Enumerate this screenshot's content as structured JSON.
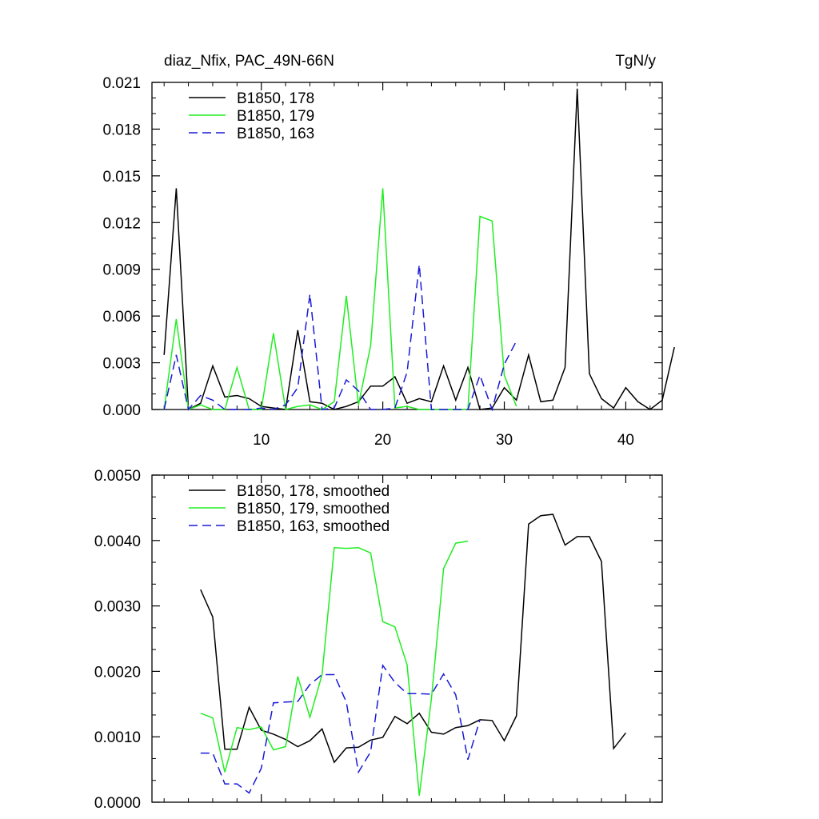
{
  "chart_data": [
    {
      "type": "line",
      "title_left": "diaz_Nfix, PAC_49N-66N",
      "title_right": "TgN/y",
      "xlim": [
        1,
        43
      ],
      "ylim": [
        0,
        0.021
      ],
      "xticks": [
        {
          "value": 10,
          "label": "10"
        },
        {
          "value": 20,
          "label": "20"
        },
        {
          "value": 30,
          "label": "30"
        },
        {
          "value": 40,
          "label": "40"
        }
      ],
      "yticks": [
        {
          "value": 0,
          "label": "0.000"
        },
        {
          "value": 0.003,
          "label": "0.003"
        },
        {
          "value": 0.006,
          "label": "0.006"
        },
        {
          "value": 0.009,
          "label": "0.009"
        },
        {
          "value": 0.012,
          "label": "0.012"
        },
        {
          "value": 0.015,
          "label": "0.015"
        },
        {
          "value": 0.018,
          "label": "0.018"
        },
        {
          "value": 0.021,
          "label": "0.021"
        }
      ],
      "legend_position": "top-left",
      "series": [
        {
          "name": "B1850, 178",
          "color": "#000000",
          "dash": "solid",
          "x_start": 2,
          "values": [
            0.0035,
            0.0142,
            0.0,
            0.0004,
            0.0028,
            0.0008,
            0.0009,
            0.0007,
            0.0002,
            0.0001,
            0.0,
            0.0051,
            0.0005,
            0.0004,
            0.0,
            0.0002,
            0.0005,
            0.0015,
            0.0015,
            0.0021,
            0.0004,
            0.0007,
            0.0005,
            0.0028,
            0.0006,
            0.0027,
            0.0,
            0.0001,
            0.0014,
            0.0006,
            0.0035,
            0.0005,
            0.0006,
            0.0027,
            0.0206,
            0.0023,
            0.0007,
            0.0001,
            0.0014,
            0.0005,
            0.0,
            0.0006,
            0.004
          ]
        },
        {
          "name": "B1850, 179",
          "color": "#22ee22",
          "dash": "solid",
          "x_start": 2,
          "values": [
            0.0,
            0.0058,
            0.0,
            0.0003,
            0.0,
            0.0,
            0.0027,
            0.0,
            0.0,
            0.0049,
            0.0,
            0.0002,
            0.0003,
            0.0,
            0.0005,
            0.0073,
            0.0003,
            0.0041,
            0.0142,
            0.0001,
            0.0002,
            0.0,
            0.0,
            0.0,
            0.0,
            0.0,
            0.0124,
            0.0121,
            0.0022,
            0.0002
          ]
        },
        {
          "name": "B1850, 163",
          "color": "#1a1ad6",
          "dash": "dashed",
          "x_start": 2,
          "values": [
            0.0,
            0.0035,
            0.0,
            0.0009,
            0.0006,
            0.0,
            0.0,
            0.0,
            0.0001,
            0.0,
            0.0003,
            0.0014,
            0.0074,
            0.0,
            0.0001,
            0.0019,
            0.0012,
            0.0,
            0.0,
            0.0001,
            0.0024,
            0.0093,
            0.0,
            0.0,
            0.0,
            0.0,
            0.0022,
            0.0,
            0.0029,
            0.0044
          ]
        }
      ]
    },
    {
      "type": "line",
      "xlim": [
        1,
        43
      ],
      "ylim": [
        0,
        0.005
      ],
      "xticks": [
        {
          "value": 10,
          "label": ""
        },
        {
          "value": 20,
          "label": ""
        },
        {
          "value": 30,
          "label": ""
        },
        {
          "value": 40,
          "label": ""
        }
      ],
      "yticks": [
        {
          "value": 0,
          "label": "0.0000"
        },
        {
          "value": 0.001,
          "label": "0.0010"
        },
        {
          "value": 0.002,
          "label": "0.0020"
        },
        {
          "value": 0.003,
          "label": "0.0030"
        },
        {
          "value": 0.004,
          "label": "0.0040"
        },
        {
          "value": 0.005,
          "label": "0.0050"
        }
      ],
      "legend_position": "top-left",
      "series": [
        {
          "name": "B1850, 178, smoothed",
          "color": "#000000",
          "dash": "solid",
          "x_start": 5,
          "values": [
            0.00325,
            0.00283,
            0.00081,
            0.00081,
            0.00145,
            0.0011,
            0.00104,
            0.00096,
            0.00085,
            0.00094,
            0.00112,
            0.00061,
            0.00083,
            0.00084,
            0.00095,
            0.00099,
            0.00131,
            0.0012,
            0.00136,
            0.00107,
            0.00104,
            0.00114,
            0.00117,
            0.00126,
            0.00125,
            0.00094,
            0.00132,
            0.00425,
            0.00438,
            0.0044,
            0.00393,
            0.00406,
            0.00406,
            0.00368,
            0.00082,
            0.00106
          ]
        },
        {
          "name": "B1850, 179, smoothed",
          "color": "#22ee22",
          "dash": "solid",
          "x_start": 5,
          "values": [
            0.00136,
            0.00129,
            0.00046,
            0.00114,
            0.00111,
            0.00115,
            0.0008,
            0.00085,
            0.00192,
            0.0013,
            0.00195,
            0.00389,
            0.00388,
            0.00389,
            0.00381,
            0.00276,
            0.00268,
            0.0021,
            0.0001,
            0.00158,
            0.00357,
            0.00396,
            0.00399
          ]
        },
        {
          "name": "B1850, 163, smoothed",
          "color": "#1a1ad6",
          "dash": "dashed",
          "x_start": 5,
          "values": [
            0.00075,
            0.00075,
            0.00028,
            0.00028,
            0.00014,
            0.00052,
            0.00152,
            0.00153,
            0.00154,
            0.0018,
            0.00195,
            0.00195,
            0.00153,
            0.00046,
            0.00077,
            0.00209,
            0.00183,
            0.00166,
            0.00166,
            0.00165,
            0.00196,
            0.00164,
            0.00065,
            0.00126
          ]
        }
      ]
    }
  ]
}
